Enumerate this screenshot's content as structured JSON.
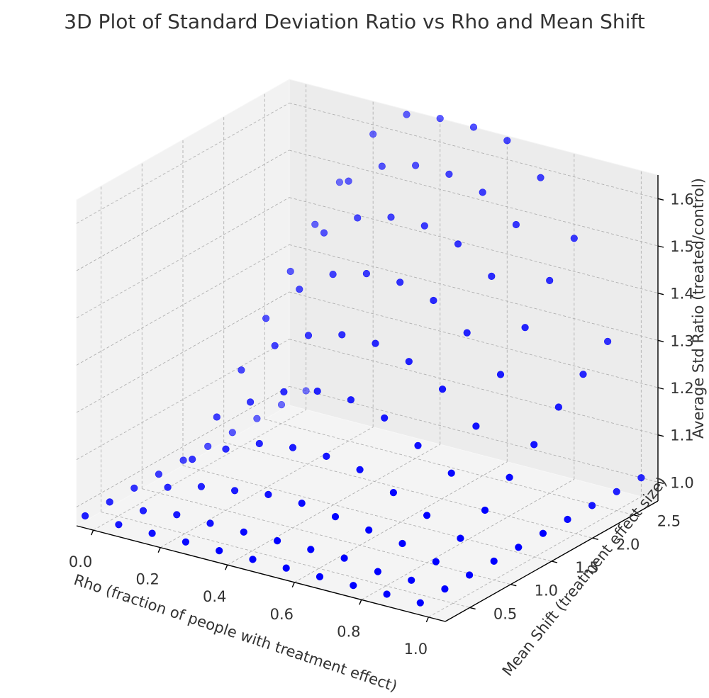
{
  "chart_data": {
    "type": "scatter",
    "projection": "3d",
    "title": "3D Plot of Standard Deviation Ratio vs Rho and Mean Shift",
    "xlabel": "Rho (fraction of people with treatment effect)",
    "ylabel": "Mean Shift (treatment effect size)",
    "zlabel": "Average Std Ratio (treated/control)",
    "x_ticks": [
      "0.0",
      "0.2",
      "0.4",
      "0.6",
      "0.8",
      "1.0"
    ],
    "y_ticks": [
      "0.5",
      "1.0",
      "1.5",
      "2.0",
      "2.5"
    ],
    "z_ticks": [
      "1.0",
      "1.1",
      "1.2",
      "1.3",
      "1.4",
      "1.5",
      "1.6"
    ],
    "xlim": [
      -0.05,
      1.05
    ],
    "ylim": [
      0.2,
      2.8
    ],
    "zlim": [
      0.96,
      1.65
    ],
    "grid": true,
    "marker_color": "#0000ff",
    "rho": [
      0.0,
      0.1,
      0.2,
      0.3,
      0.4,
      0.5,
      0.6,
      0.7,
      0.8,
      0.9,
      1.0
    ],
    "mean_shift": [
      0.1,
      0.4,
      0.7,
      1.0,
      1.3,
      1.6,
      1.9,
      2.2,
      2.5,
      2.8
    ],
    "note_values": "std_ratio[i][j] for rho[i], mean_shift[j]",
    "std_ratio": [
      [
        1.0,
        1.0,
        1.0,
        1.0,
        1.0,
        1.0,
        1.0,
        1.0,
        1.0,
        1.0
      ],
      [
        1.0,
        1.0,
        1.02,
        1.05,
        1.11,
        1.18,
        1.26,
        1.33,
        1.4,
        1.46
      ],
      [
        1.0,
        1.01,
        1.04,
        1.09,
        1.16,
        1.25,
        1.34,
        1.43,
        1.51,
        1.58
      ],
      [
        1.0,
        1.01,
        1.05,
        1.12,
        1.2,
        1.29,
        1.39,
        1.48,
        1.56,
        1.64
      ],
      [
        1.0,
        1.01,
        1.06,
        1.13,
        1.22,
        1.31,
        1.41,
        1.5,
        1.58,
        1.65
      ],
      [
        1.0,
        1.01,
        1.06,
        1.13,
        1.22,
        1.31,
        1.41,
        1.5,
        1.58,
        1.65
      ],
      [
        1.0,
        1.01,
        1.05,
        1.12,
        1.2,
        1.29,
        1.39,
        1.48,
        1.56,
        1.64
      ],
      [
        1.0,
        1.01,
        1.04,
        1.09,
        1.16,
        1.25,
        1.34,
        1.43,
        1.51,
        1.58
      ],
      [
        1.0,
        1.0,
        1.03,
        1.06,
        1.12,
        1.19,
        1.27,
        1.34,
        1.41,
        1.47
      ],
      [
        1.0,
        1.0,
        1.01,
        1.03,
        1.06,
        1.1,
        1.14,
        1.19,
        1.23,
        1.27
      ],
      [
        1.0,
        1.0,
        1.0,
        1.0,
        1.0,
        1.0,
        1.0,
        1.0,
        1.0,
        1.0
      ]
    ]
  }
}
